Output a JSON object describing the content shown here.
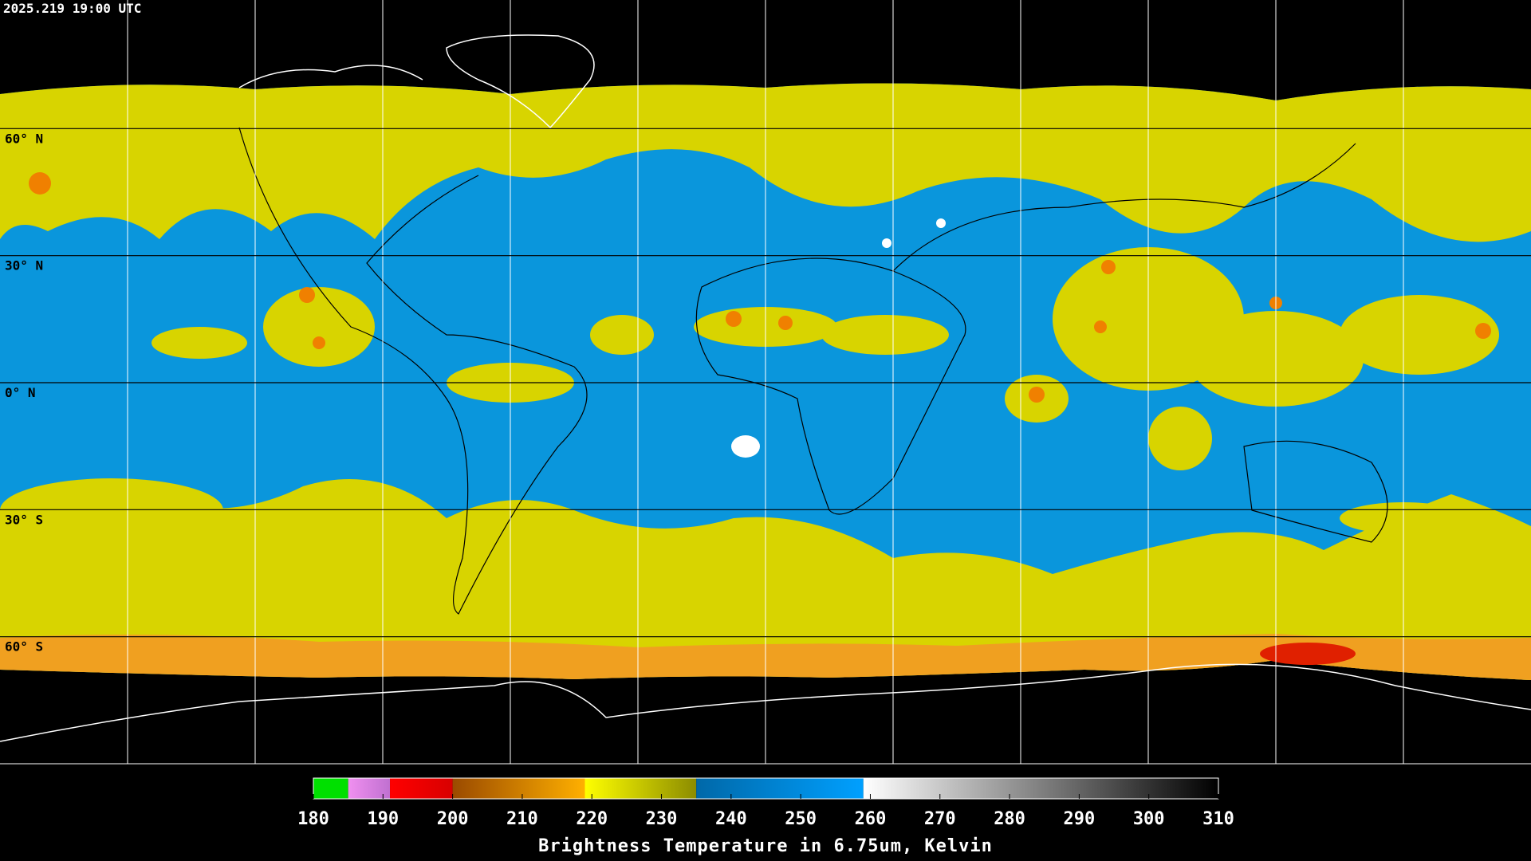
{
  "header": {
    "timestamp": "2025.219 19:00 UTC"
  },
  "map": {
    "lat_range": [
      -90,
      90
    ],
    "latitudes": [
      {
        "value": 60,
        "label": "60° N"
      },
      {
        "value": 30,
        "label": "30° N"
      },
      {
        "value": 0,
        "label": "0° N"
      },
      {
        "value": -30,
        "label": "30° S"
      },
      {
        "value": -60,
        "label": "60° S"
      }
    ]
  },
  "colorbar": {
    "range": [
      180,
      310
    ],
    "ticks": [
      180,
      190,
      200,
      210,
      220,
      230,
      240,
      250,
      260,
      270,
      280,
      290,
      300,
      310
    ],
    "segments": [
      {
        "from": 180,
        "to": 185,
        "color_start": "#00e000",
        "color_end": "#00e000"
      },
      {
        "from": 185,
        "to": 191,
        "color_start": "#f090f0",
        "color_end": "#c070d0"
      },
      {
        "from": 191,
        "to": 200,
        "color_start": "#ff0000",
        "color_end": "#d80000"
      },
      {
        "from": 200,
        "to": 219,
        "color_start": "#9a4a00",
        "color_end": "#ffb000"
      },
      {
        "from": 219,
        "to": 235,
        "color_start": "#ffff00",
        "color_end": "#8c8c00"
      },
      {
        "from": 235,
        "to": 259,
        "color_start": "#0068a8",
        "color_end": "#00a0ff"
      },
      {
        "from": 259,
        "to": 310,
        "color_start": "#ffffff",
        "color_end": "#000000"
      }
    ],
    "label": "Brightness Temperature in 6.75um, Kelvin"
  }
}
